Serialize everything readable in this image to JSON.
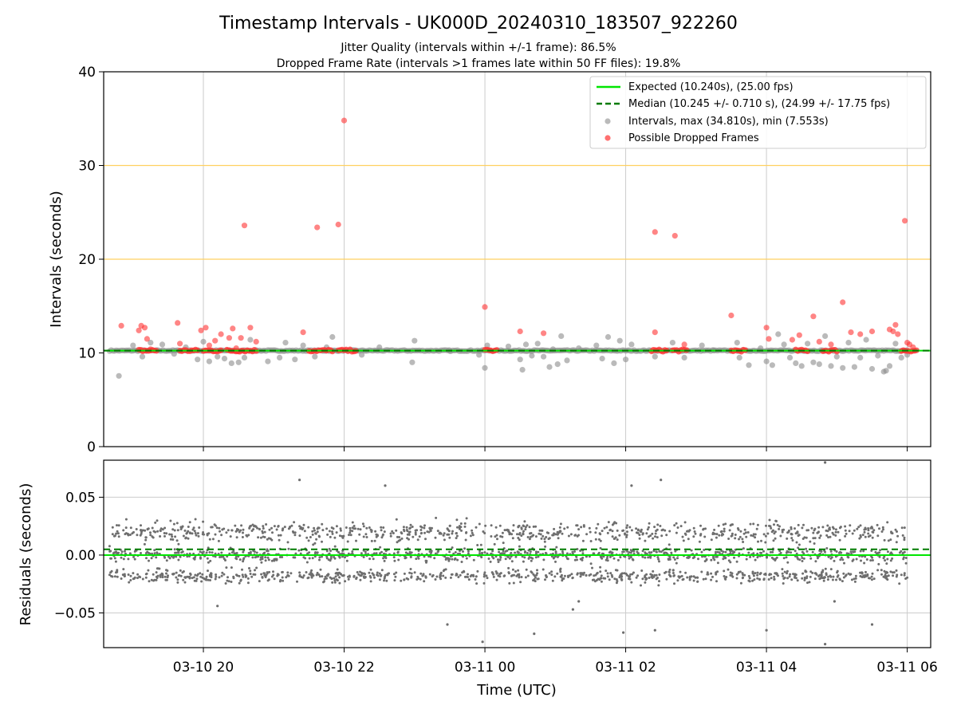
{
  "figure": {
    "title": "Timestamp Intervals - UK000D_20240310_183507_922260",
    "subtitle_1": "Jitter Quality (intervals within +/-1 frame): 86.5%",
    "subtitle_2": "Dropped Frame Rate (intervals >1 frames late within 50 FF files): 19.8%"
  },
  "colors": {
    "expected": "#00e600",
    "median": "#007a00",
    "interval": "#8c8c8c",
    "dropped": "#ff3333",
    "threshold": "#ffd060",
    "grid": "#cccccc",
    "residual": "#6e6e6e"
  },
  "chart_data": [
    {
      "type": "scatter",
      "name": "intervals",
      "ylabel": "Intervals (seconds)",
      "xlabel": "",
      "xlim": [
        "2024-03-10T18:35",
        "2024-03-11T06:20"
      ],
      "ylim": [
        0,
        40
      ],
      "yticks": [
        0,
        10,
        20,
        30,
        40
      ],
      "grid": true,
      "legend_position": "top-right",
      "threshold_lines": [
        20,
        30
      ],
      "legend": [
        "Expected (10.240s), (25.00 fps)",
        "Median (10.245 +/- 0.710 s), (24.99 +/- 17.75 fps)",
        "Intervals, max (34.810s), min (7.553s)",
        "Possible Dropped Frames"
      ],
      "expected": 10.24,
      "median": 10.245,
      "series": [
        {
          "name": "Intervals",
          "points": [
            [
              "2024-03-10T18:48",
              7.55
            ],
            [
              "2024-03-10T19:00",
              10.8
            ],
            [
              "2024-03-10T19:08",
              9.6
            ],
            [
              "2024-03-10T19:15",
              11.1
            ],
            [
              "2024-03-10T19:25",
              10.9
            ],
            [
              "2024-03-10T19:35",
              9.9
            ],
            [
              "2024-03-10T19:45",
              10.6
            ],
            [
              "2024-03-10T19:55",
              9.3
            ],
            [
              "2024-03-10T20:00",
              11.2
            ],
            [
              "2024-03-10T20:05",
              9.1
            ],
            [
              "2024-03-10T20:12",
              9.6
            ],
            [
              "2024-03-10T20:18",
              9.4
            ],
            [
              "2024-03-10T20:24",
              8.9
            ],
            [
              "2024-03-10T20:30",
              9.0
            ],
            [
              "2024-03-10T20:35",
              9.5
            ],
            [
              "2024-03-10T20:40",
              11.4
            ],
            [
              "2024-03-10T20:55",
              9.1
            ],
            [
              "2024-03-10T21:05",
              9.5
            ],
            [
              "2024-03-10T21:10",
              11.1
            ],
            [
              "2024-03-10T21:18",
              9.3
            ],
            [
              "2024-03-10T21:25",
              10.8
            ],
            [
              "2024-03-10T21:35",
              9.6
            ],
            [
              "2024-03-10T21:45",
              10.6
            ],
            [
              "2024-03-10T21:50",
              11.7
            ],
            [
              "2024-03-10T22:15",
              9.8
            ],
            [
              "2024-03-10T22:30",
              10.6
            ],
            [
              "2024-03-10T22:58",
              9.0
            ],
            [
              "2024-03-10T23:00",
              11.3
            ],
            [
              "2024-03-10T23:30",
              10.2
            ],
            [
              "2024-03-10T23:55",
              9.8
            ],
            [
              "2024-03-11T00:00",
              8.4
            ],
            [
              "2024-03-11T00:02",
              10.8
            ],
            [
              "2024-03-11T00:20",
              10.7
            ],
            [
              "2024-03-11T00:30",
              9.3
            ],
            [
              "2024-03-11T00:32",
              8.2
            ],
            [
              "2024-03-11T00:35",
              10.9
            ],
            [
              "2024-03-11T00:40",
              9.7
            ],
            [
              "2024-03-11T00:45",
              11.0
            ],
            [
              "2024-03-11T00:50",
              9.6
            ],
            [
              "2024-03-11T00:55",
              8.5
            ],
            [
              "2024-03-11T00:58",
              10.4
            ],
            [
              "2024-03-11T01:02",
              8.8
            ],
            [
              "2024-03-11T01:05",
              11.8
            ],
            [
              "2024-03-11T01:10",
              9.2
            ],
            [
              "2024-03-11T01:20",
              10.5
            ],
            [
              "2024-03-11T01:35",
              10.8
            ],
            [
              "2024-03-11T01:40",
              9.4
            ],
            [
              "2024-03-11T01:45",
              11.7
            ],
            [
              "2024-03-11T01:50",
              8.9
            ],
            [
              "2024-03-11T01:55",
              11.3
            ],
            [
              "2024-03-11T02:00",
              9.3
            ],
            [
              "2024-03-11T02:05",
              10.9
            ],
            [
              "2024-03-11T02:25",
              9.6
            ],
            [
              "2024-03-11T02:40",
              11.1
            ],
            [
              "2024-03-11T02:50",
              9.5
            ],
            [
              "2024-03-11T03:05",
              10.8
            ],
            [
              "2024-03-11T03:15",
              10.3
            ],
            [
              "2024-03-11T03:35",
              11.1
            ],
            [
              "2024-03-11T03:37",
              9.5
            ],
            [
              "2024-03-11T03:45",
              8.7
            ],
            [
              "2024-03-11T03:55",
              10.5
            ],
            [
              "2024-03-11T04:00",
              9.1
            ],
            [
              "2024-03-11T04:05",
              8.7
            ],
            [
              "2024-03-11T04:10",
              12.0
            ],
            [
              "2024-03-11T04:15",
              10.9
            ],
            [
              "2024-03-11T04:20",
              9.5
            ],
            [
              "2024-03-11T04:25",
              8.9
            ],
            [
              "2024-03-11T04:30",
              8.6
            ],
            [
              "2024-03-11T04:35",
              11.0
            ],
            [
              "2024-03-11T04:40",
              9.0
            ],
            [
              "2024-03-11T04:45",
              8.8
            ],
            [
              "2024-03-11T04:50",
              11.8
            ],
            [
              "2024-03-11T04:55",
              8.6
            ],
            [
              "2024-03-11T05:00",
              9.6
            ],
            [
              "2024-03-11T05:05",
              8.4
            ],
            [
              "2024-03-11T05:10",
              11.1
            ],
            [
              "2024-03-11T05:15",
              8.5
            ],
            [
              "2024-03-11T05:20",
              9.5
            ],
            [
              "2024-03-11T05:25",
              11.4
            ],
            [
              "2024-03-11T05:30",
              8.3
            ],
            [
              "2024-03-11T05:35",
              9.7
            ],
            [
              "2024-03-11T05:40",
              8.0
            ],
            [
              "2024-03-11T05:42",
              8.1
            ],
            [
              "2024-03-11T05:45",
              8.6
            ],
            [
              "2024-03-11T05:50",
              11.0
            ],
            [
              "2024-03-11T05:55",
              9.5
            ],
            [
              "2024-03-11T06:00",
              9.8
            ]
          ]
        },
        {
          "name": "Possible Dropped Frames",
          "points": [
            [
              "2024-03-10T18:50",
              12.9
            ],
            [
              "2024-03-10T19:05",
              12.4
            ],
            [
              "2024-03-10T19:07",
              12.9
            ],
            [
              "2024-03-10T19:10",
              12.7
            ],
            [
              "2024-03-10T19:12",
              11.5
            ],
            [
              "2024-03-10T19:15",
              10.4
            ],
            [
              "2024-03-10T19:38",
              13.2
            ],
            [
              "2024-03-10T19:40",
              11.0
            ],
            [
              "2024-03-10T19:58",
              12.4
            ],
            [
              "2024-03-10T20:02",
              12.7
            ],
            [
              "2024-03-10T20:05",
              10.8
            ],
            [
              "2024-03-10T20:10",
              11.3
            ],
            [
              "2024-03-10T20:15",
              12.0
            ],
            [
              "2024-03-10T20:22",
              11.6
            ],
            [
              "2024-03-10T20:25",
              12.6
            ],
            [
              "2024-03-10T20:28",
              10.5
            ],
            [
              "2024-03-10T20:32",
              11.6
            ],
            [
              "2024-03-10T20:35",
              23.6
            ],
            [
              "2024-03-10T20:40",
              12.7
            ],
            [
              "2024-03-10T20:45",
              11.2
            ],
            [
              "2024-03-10T21:25",
              12.2
            ],
            [
              "2024-03-10T21:37",
              23.4
            ],
            [
              "2024-03-10T21:55",
              23.7
            ],
            [
              "2024-03-10T22:00",
              34.8
            ],
            [
              "2024-03-11T00:00",
              14.9
            ],
            [
              "2024-03-11T00:30",
              12.3
            ],
            [
              "2024-03-11T00:50",
              12.1
            ],
            [
              "2024-03-11T02:25",
              22.9
            ],
            [
              "2024-03-11T02:25",
              12.2
            ],
            [
              "2024-03-11T02:42",
              22.5
            ],
            [
              "2024-03-11T02:50",
              10.9
            ],
            [
              "2024-03-11T03:30",
              14.0
            ],
            [
              "2024-03-11T04:00",
              12.7
            ],
            [
              "2024-03-11T04:02",
              11.5
            ],
            [
              "2024-03-11T04:22",
              11.4
            ],
            [
              "2024-03-11T04:28",
              11.9
            ],
            [
              "2024-03-11T04:40",
              13.9
            ],
            [
              "2024-03-11T04:45",
              11.2
            ],
            [
              "2024-03-11T04:55",
              10.9
            ],
            [
              "2024-03-11T05:05",
              15.4
            ],
            [
              "2024-03-11T05:12",
              12.2
            ],
            [
              "2024-03-11T05:20",
              12.0
            ],
            [
              "2024-03-11T05:30",
              12.3
            ],
            [
              "2024-03-11T05:45",
              12.5
            ],
            [
              "2024-03-11T05:48",
              12.3
            ],
            [
              "2024-03-11T05:50",
              13.0
            ],
            [
              "2024-03-11T05:52",
              12.0
            ],
            [
              "2024-03-11T05:58",
              24.1
            ],
            [
              "2024-03-11T06:00",
              11.1
            ],
            [
              "2024-03-11T06:02",
              10.9
            ],
            [
              "2024-03-11T06:05",
              10.6
            ]
          ]
        }
      ],
      "dropped_clusters": [
        [
          "2024-03-10T19:05",
          "2024-03-10T19:20"
        ],
        [
          "2024-03-10T19:40",
          "2024-03-10T19:55"
        ],
        [
          "2024-03-10T20:00",
          "2024-03-10T20:15"
        ],
        [
          "2024-03-10T20:20",
          "2024-03-10T20:45"
        ],
        [
          "2024-03-10T21:30",
          "2024-03-10T21:50"
        ],
        [
          "2024-03-10T21:55",
          "2024-03-10T22:10"
        ],
        [
          "2024-03-11T00:00",
          "2024-03-11T00:10"
        ],
        [
          "2024-03-11T02:22",
          "2024-03-11T02:35"
        ],
        [
          "2024-03-11T02:40",
          "2024-03-11T02:52"
        ],
        [
          "2024-03-11T03:30",
          "2024-03-11T03:42"
        ],
        [
          "2024-03-11T04:25",
          "2024-03-11T04:35"
        ],
        [
          "2024-03-11T04:48",
          "2024-03-11T05:00"
        ],
        [
          "2024-03-11T05:55",
          "2024-03-11T06:08"
        ]
      ]
    },
    {
      "type": "scatter",
      "name": "residuals",
      "ylabel": "Residuals (seconds)",
      "xlabel": "Time (UTC)",
      "xlim": [
        "2024-03-10T18:35",
        "2024-03-11T06:20"
      ],
      "ylim": [
        -0.08,
        0.082
      ],
      "yticks": [
        -0.05,
        0.0,
        0.05
      ],
      "ytick_labels": [
        "−0.05",
        "0.00",
        "0.05"
      ],
      "xticks": [
        "2024-03-10T20:00",
        "2024-03-10T22:00",
        "2024-03-11T00:00",
        "2024-03-11T02:00",
        "2024-03-11T04:00",
        "2024-03-11T06:00"
      ],
      "xtick_labels": [
        "03-10 20",
        "03-10 22",
        "03-11 00",
        "03-11 02",
        "03-11 04",
        "03-11 06"
      ],
      "grid": true,
      "expected_line": 0.0,
      "median_line": 0.005,
      "data_range": [
        "2024-03-10T18:40",
        "2024-03-11T06:00"
      ],
      "bands": [
        {
          "center": 0.02,
          "spread": 0.018
        },
        {
          "center": 0.0,
          "spread": 0.012
        },
        {
          "center": -0.018,
          "spread": 0.012
        }
      ],
      "outliers": [
        [
          "2024-03-10T20:12",
          -0.044
        ],
        [
          "2024-03-10T21:22",
          0.065
        ],
        [
          "2024-03-10T23:28",
          -0.06
        ],
        [
          "2024-03-10T23:58",
          -0.075
        ],
        [
          "2024-03-11T00:42",
          -0.068
        ],
        [
          "2024-03-11T01:15",
          -0.047
        ],
        [
          "2024-03-11T01:20",
          -0.04
        ],
        [
          "2024-03-11T01:58",
          -0.067
        ],
        [
          "2024-03-11T02:05",
          0.06
        ],
        [
          "2024-03-11T02:25",
          -0.065
        ],
        [
          "2024-03-11T02:30",
          0.065
        ],
        [
          "2024-03-11T04:00",
          -0.065
        ],
        [
          "2024-03-11T04:50",
          0.08
        ],
        [
          "2024-03-11T04:50",
          -0.077
        ],
        [
          "2024-03-11T05:30",
          -0.06
        ],
        [
          "2024-03-11T04:58",
          -0.04
        ],
        [
          "2024-03-10T22:35",
          0.06
        ]
      ]
    }
  ]
}
